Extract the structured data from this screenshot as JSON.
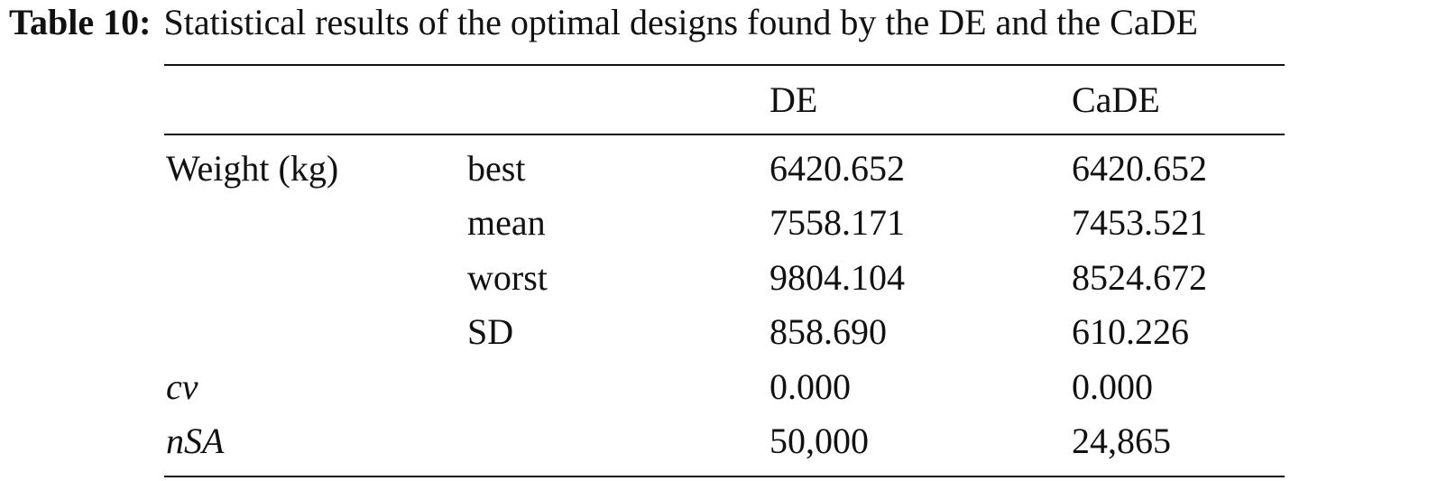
{
  "caption": {
    "label": "Table 10:",
    "text": "Statistical results of the optimal designs found by the DE and the CaDE"
  },
  "table": {
    "headers": [
      "",
      "",
      "DE",
      "CaDE"
    ],
    "rows": [
      {
        "group": "Weight (kg)",
        "stat": "best",
        "de": "6420.652",
        "cade": "6420.652"
      },
      {
        "group": "",
        "stat": "mean",
        "de": "7558.171",
        "cade": "7453.521"
      },
      {
        "group": "",
        "stat": "worst",
        "de": "9804.104",
        "cade": "8524.672"
      },
      {
        "group": "",
        "stat": "SD",
        "de": "858.690",
        "cade": "610.226"
      },
      {
        "group": "cv",
        "stat": "",
        "de": "0.000",
        "cade": "0.000"
      },
      {
        "group": "nSA",
        "stat": "",
        "de": "50,000",
        "cade": "24,865"
      }
    ]
  }
}
